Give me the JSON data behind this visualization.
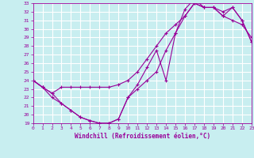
{
  "xlabel": "Windchill (Refroidissement éolien,°C)",
  "xlim": [
    0,
    23
  ],
  "ylim": [
    19,
    33
  ],
  "xticks": [
    0,
    1,
    2,
    3,
    4,
    5,
    6,
    7,
    8,
    9,
    10,
    11,
    12,
    13,
    14,
    15,
    16,
    17,
    18,
    19,
    20,
    21,
    22,
    23
  ],
  "yticks": [
    19,
    20,
    21,
    22,
    23,
    24,
    25,
    26,
    27,
    28,
    29,
    30,
    31,
    32,
    33
  ],
  "bg_color": "#c8eef0",
  "grid_color": "#ffffff",
  "lc": "#990099",
  "c1x": [
    0,
    1,
    2,
    3,
    4,
    5,
    6,
    7,
    8,
    9,
    10,
    11,
    12,
    13,
    14,
    15,
    16,
    17,
    18,
    19,
    20,
    21,
    22,
    23
  ],
  "c1y": [
    24.0,
    23.2,
    22.5,
    23.2,
    23.2,
    23.2,
    23.2,
    23.2,
    23.2,
    23.5,
    24.0,
    25.0,
    26.5,
    28.0,
    29.5,
    30.5,
    31.5,
    33.0,
    32.5,
    32.5,
    32.0,
    32.5,
    31.0,
    28.5
  ],
  "c2x": [
    0,
    1,
    2,
    3,
    4,
    5,
    6,
    7,
    8,
    9,
    10,
    11,
    12,
    13,
    14,
    15,
    16,
    17,
    18,
    19,
    20,
    21,
    22,
    23
  ],
  "c2y": [
    24.0,
    23.2,
    22.5,
    21.3,
    20.5,
    19.7,
    19.3,
    19.0,
    19.0,
    19.5,
    22.0,
    23.5,
    25.5,
    27.5,
    24.0,
    29.5,
    32.3,
    33.5,
    32.5,
    32.5,
    31.5,
    32.5,
    31.0,
    28.5
  ],
  "c3x": [
    0,
    1,
    2,
    3,
    4,
    5,
    6,
    7,
    8,
    9,
    10,
    11,
    12,
    13,
    14,
    15,
    16,
    17,
    18,
    19,
    20,
    21,
    22,
    23
  ],
  "c3y": [
    24.0,
    23.2,
    22.0,
    21.3,
    20.5,
    19.7,
    19.3,
    19.0,
    19.0,
    19.5,
    22.0,
    23.0,
    24.0,
    25.0,
    27.5,
    29.5,
    31.5,
    33.0,
    32.5,
    32.5,
    31.5,
    31.0,
    30.5,
    29.0
  ]
}
